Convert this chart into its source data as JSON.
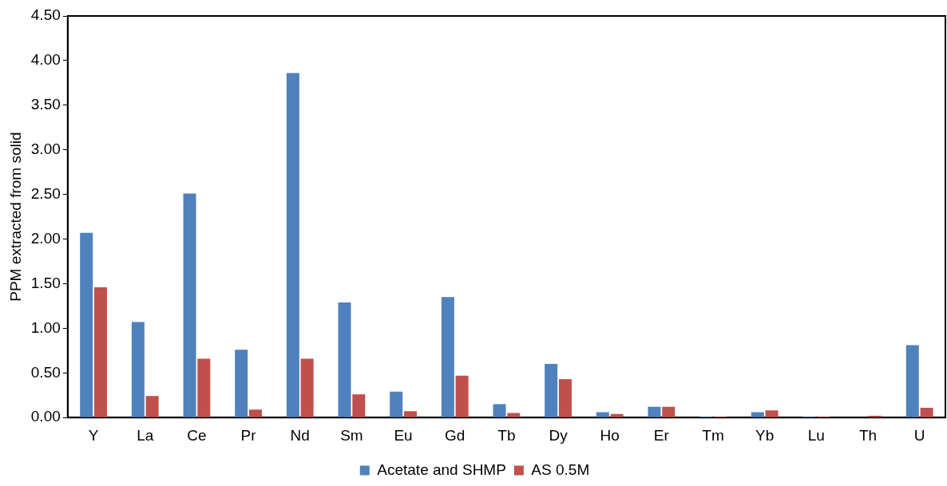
{
  "chart_data": {
    "type": "bar",
    "ylabel": "PPM extracted from solid",
    "categories": [
      "Y",
      "La",
      "Ce",
      "Pr",
      "Nd",
      "Sm",
      "Eu",
      "Gd",
      "Tb",
      "Dy",
      "Ho",
      "Er",
      "Tm",
      "Yb",
      "Lu",
      "Th",
      "U"
    ],
    "series": [
      {
        "name": "Acetate and SHMP",
        "color": "#4f81bd",
        "values": [
          2.07,
          1.07,
          2.51,
          0.76,
          3.86,
          1.29,
          0.29,
          1.35,
          0.15,
          0.6,
          0.06,
          0.12,
          0.01,
          0.06,
          0.01,
          0,
          0.81
        ]
      },
      {
        "name": "AS 0.5M",
        "color": "#c0504d",
        "values": [
          1.46,
          0.24,
          0.66,
          0.09,
          0.66,
          0.26,
          0.07,
          0.47,
          0.05,
          0.43,
          0.04,
          0.12,
          0.01,
          0.08,
          0.01,
          0.02,
          0.11
        ]
      }
    ],
    "ylim": [
      0,
      4.5
    ],
    "yticks": [
      {
        "value": 0,
        "label": "0.00"
      },
      {
        "value": 0.5,
        "label": "0.50"
      },
      {
        "value": 1,
        "label": "1.00"
      },
      {
        "value": 1.5,
        "label": "1.50"
      },
      {
        "value": 2,
        "label": "2.00"
      },
      {
        "value": 2.5,
        "label": "2.50"
      },
      {
        "value": 3,
        "label": "3.00"
      },
      {
        "value": 3.5,
        "label": "3.50"
      },
      {
        "value": 4,
        "label": "4.00"
      },
      {
        "value": 4.5,
        "label": "4.50"
      }
    ],
    "grid": false,
    "legend": "bottom"
  }
}
